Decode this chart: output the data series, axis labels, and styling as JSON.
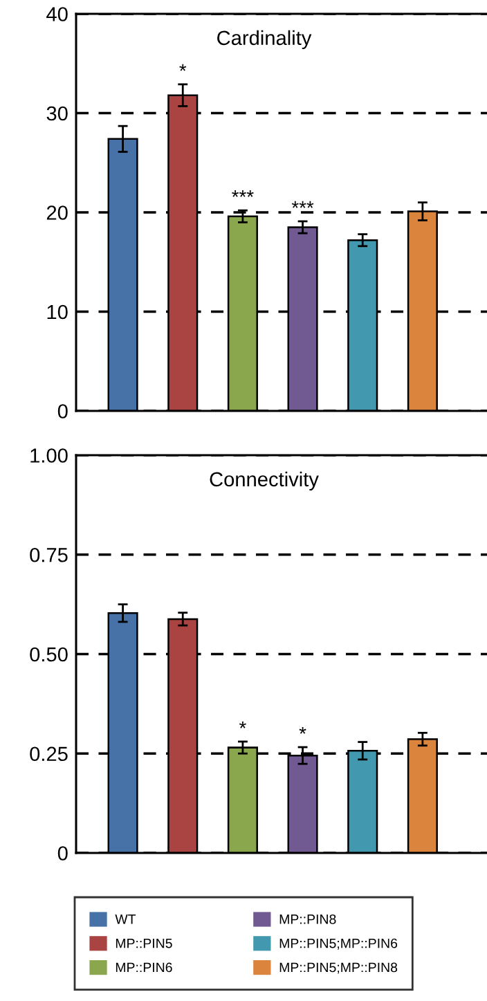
{
  "chart_data": [
    {
      "type": "bar",
      "title": "Cardinality",
      "categories": [
        "WT",
        "MP::PIN5",
        "MP::PIN6",
        "MP::PIN8",
        "MP::PIN5;MP::PIN6",
        "MP::PIN5;MP::PIN8"
      ],
      "tick_labels": "y",
      "ylim": [
        0,
        40
      ],
      "yticks": [
        0,
        10,
        20,
        30,
        40
      ],
      "grid": "y",
      "line_style": "dashed",
      "series": [
        {
          "color": "#4672a8",
          "values": [
            27.4,
            null,
            null,
            null,
            null,
            null
          ],
          "errors": [
            1.3,
            null,
            null,
            null,
            null,
            null
          ]
        },
        {
          "color": "#a94442",
          "values": [
            null,
            31.8,
            null,
            null,
            null,
            null
          ],
          "errors": [
            null,
            1.1,
            null,
            null,
            null,
            null
          ]
        },
        {
          "color": "#8aa74e",
          "values": [
            null,
            null,
            19.6,
            null,
            null,
            null
          ],
          "errors": [
            null,
            null,
            0.6,
            null,
            null,
            null
          ]
        },
        {
          "color": "#715991",
          "values": [
            null,
            null,
            null,
            18.5,
            null,
            null
          ],
          "errors": [
            null,
            null,
            null,
            0.6,
            null,
            null
          ]
        },
        {
          "color": "#4198af",
          "values": [
            null,
            null,
            null,
            null,
            17.2,
            null
          ],
          "errors": [
            null,
            null,
            null,
            null,
            0.6,
            null
          ]
        },
        {
          "color": "#db843d",
          "values": [
            null,
            null,
            null,
            null,
            null,
            20.1
          ],
          "errors": [
            null,
            null,
            null,
            null,
            null,
            0.9
          ]
        }
      ],
      "annotations": [
        {
          "text": "*",
          "x": "MP::PIN5",
          "y": 31.8
        },
        {
          "text": "***",
          "x": "MP::PIN6",
          "y": 19.6
        },
        {
          "text": "***",
          "x": "MP::PIN8",
          "y": 18.5
        }
      ]
    },
    {
      "type": "bar",
      "title": "Connectivity",
      "categories": [
        "WT",
        "MP::PIN5",
        "MP::PIN6",
        "MP::PIN8",
        "MP::PIN5;MP::PIN6",
        "MP::PIN5;MP::PIN8"
      ],
      "tick_labels": "y",
      "ylim": [
        0,
        1.0
      ],
      "yticks": [
        0,
        {
          "value": 0.25,
          "label": "0.25"
        },
        {
          "value": 0.5,
          "label": "0.50"
        },
        {
          "value": 0.75,
          "label": "0.75"
        },
        {
          "value": 1.0,
          "label": "1.00"
        }
      ],
      "grid": "y",
      "line_style": "dashed",
      "legend": "bottom",
      "series": [
        {
          "name": "WT",
          "color": "#4672a8",
          "values": [
            0.603,
            null,
            null,
            null,
            null,
            null
          ],
          "errors": [
            0.022,
            null,
            null,
            null,
            null,
            null
          ]
        },
        {
          "name": "MP::PIN5",
          "color": "#a94442",
          "values": [
            null,
            0.588,
            null,
            null,
            null,
            null
          ],
          "errors": [
            null,
            0.016,
            null,
            null,
            null,
            null
          ]
        },
        {
          "name": "MP::PIN6",
          "color": "#8aa74e",
          "values": [
            null,
            null,
            0.265,
            null,
            null,
            null
          ],
          "errors": [
            null,
            null,
            0.015,
            null,
            null,
            null
          ]
        },
        {
          "name": "MP::PIN8",
          "color": "#715991",
          "values": [
            null,
            null,
            null,
            0.245,
            null,
            null
          ],
          "errors": [
            null,
            null,
            null,
            0.021,
            null,
            null
          ]
        },
        {
          "name": "MP::PIN5;MP::PIN6",
          "color": "#4198af",
          "values": [
            null,
            null,
            null,
            null,
            0.257,
            null
          ],
          "errors": [
            null,
            null,
            null,
            null,
            0.022,
            null
          ]
        },
        {
          "name": "MP::PIN5;MP::PIN8",
          "color": "#db843d",
          "values": [
            null,
            null,
            null,
            null,
            null,
            0.286
          ],
          "errors": [
            null,
            null,
            null,
            null,
            null,
            0.016
          ]
        }
      ],
      "annotations": [
        {
          "text": "*",
          "x": "MP::PIN6",
          "y": 0.265
        },
        {
          "text": "*",
          "x": "MP::PIN8",
          "y": 0.245
        }
      ]
    }
  ]
}
